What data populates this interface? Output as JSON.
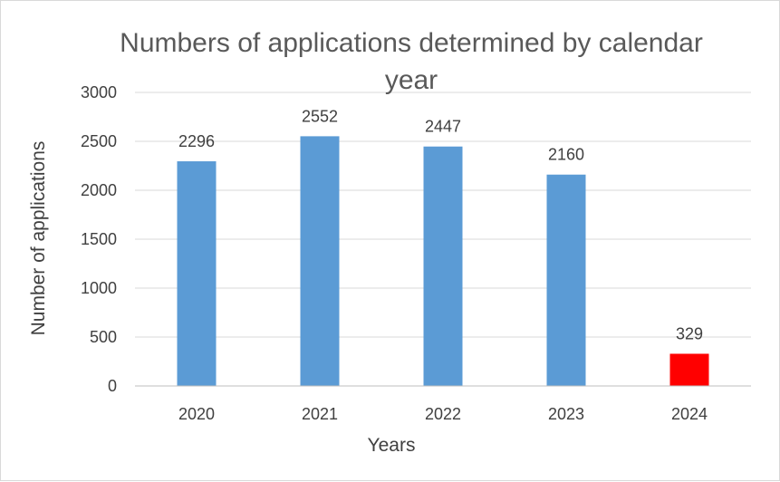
{
  "chart_data": {
    "type": "bar",
    "title_lines": [
      "Numbers of applications determined by calendar",
      "year"
    ],
    "xlabel": "Years",
    "ylabel": "Number of applications",
    "categories": [
      "2020",
      "2021",
      "2022",
      "2023",
      "2024"
    ],
    "values": [
      2296,
      2552,
      2447,
      2160,
      329
    ],
    "data_labels": [
      "2296",
      "2552",
      "2447",
      "2160",
      "329"
    ],
    "ylim": [
      0,
      3000
    ],
    "yticks": [
      0,
      500,
      1000,
      1500,
      2000,
      2500,
      3000
    ],
    "ytick_labels": [
      "0",
      "500",
      "1000",
      "1500",
      "2000",
      "2500",
      "3000"
    ],
    "grid": true,
    "legend": "none",
    "colors": {
      "default_bar": "#5b9bd5",
      "highlight_bar": "#ff0000"
    },
    "bar_colors": [
      "#5b9bd5",
      "#5b9bd5",
      "#5b9bd5",
      "#5b9bd5",
      "#ff0000"
    ]
  }
}
